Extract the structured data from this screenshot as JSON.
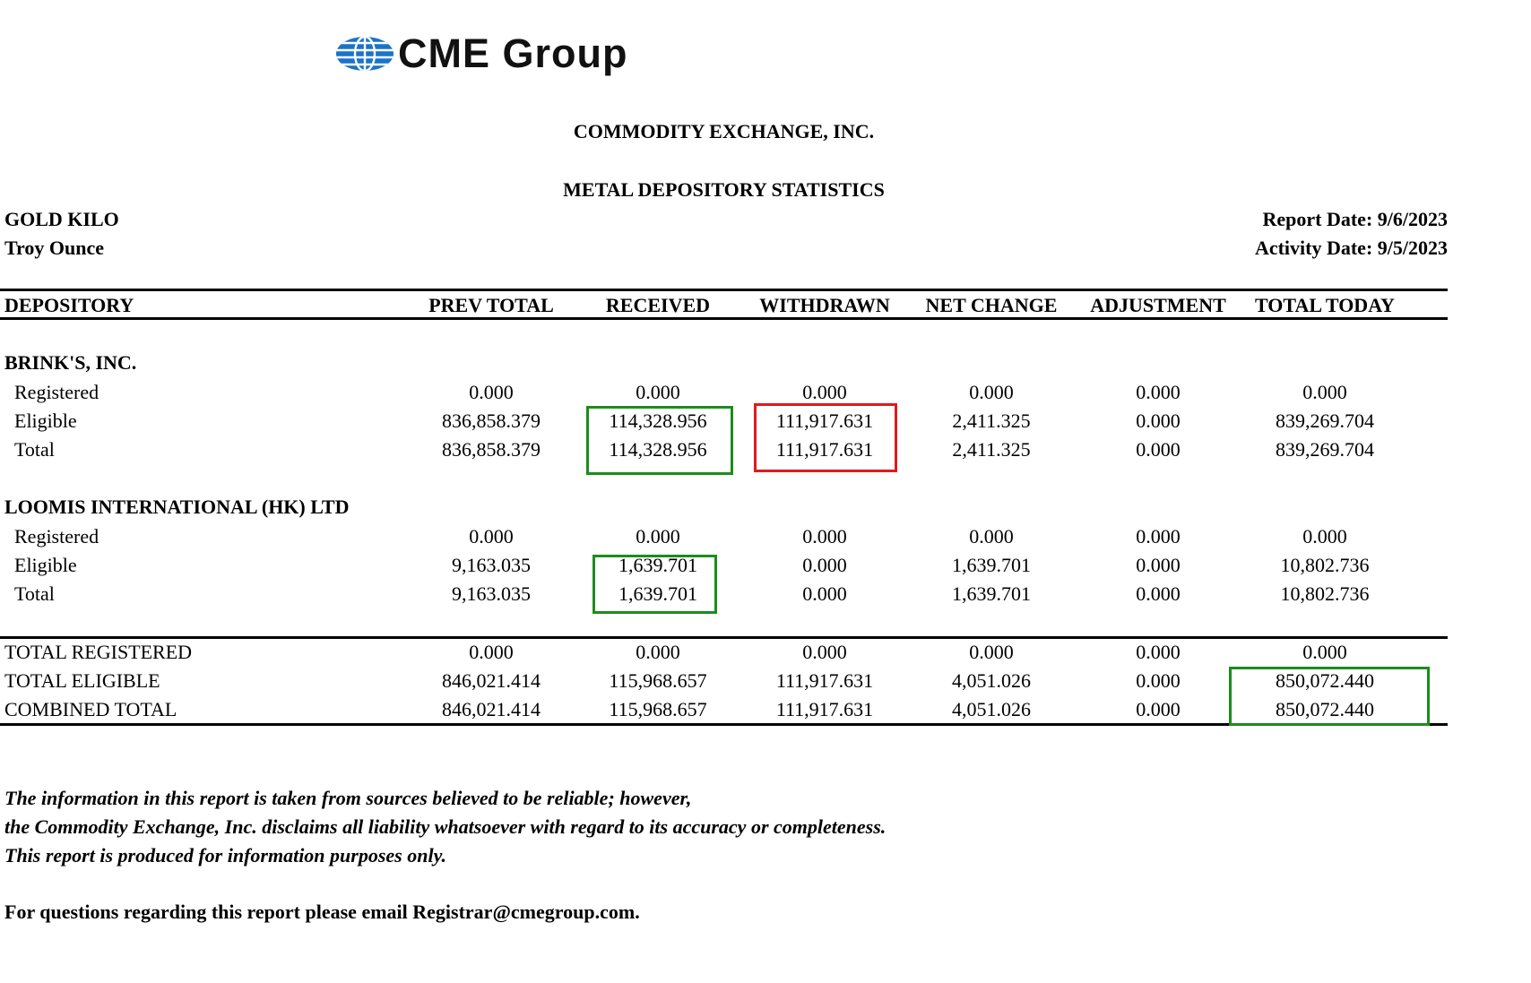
{
  "logo": {
    "text": "CME Group",
    "icon": "globe-icon",
    "color": "#1a73c8"
  },
  "header": {
    "company": "COMMODITY EXCHANGE, INC.",
    "report_title": "METAL DEPOSITORY STATISTICS",
    "metal": "GOLD KILO",
    "unit": "Troy Ounce",
    "report_date": "Report Date: 9/6/2023",
    "activity_date": "Activity Date: 9/5/2023"
  },
  "columns": [
    "DEPOSITORY",
    "PREV TOTAL",
    "RECEIVED",
    "WITHDRAWN",
    "NET CHANGE",
    "ADJUSTMENT",
    "TOTAL TODAY"
  ],
  "depositories": [
    {
      "name": "BRINK'S, INC.",
      "rows": [
        {
          "label": "Registered",
          "values": [
            "0.000",
            "0.000",
            "0.000",
            "0.000",
            "0.000",
            "0.000"
          ]
        },
        {
          "label": "Eligible",
          "values": [
            "836,858.379",
            "114,328.956",
            "111,917.631",
            "2,411.325",
            "0.000",
            "839,269.704"
          ]
        },
        {
          "label": "Total",
          "values": [
            "836,858.379",
            "114,328.956",
            "111,917.631",
            "2,411.325",
            "0.000",
            "839,269.704"
          ]
        }
      ]
    },
    {
      "name": "LOOMIS INTERNATIONAL (HK) LTD",
      "rows": [
        {
          "label": "Registered",
          "values": [
            "0.000",
            "0.000",
            "0.000",
            "0.000",
            "0.000",
            "0.000"
          ]
        },
        {
          "label": "Eligible",
          "values": [
            "9,163.035",
            "1,639.701",
            "0.000",
            "1,639.701",
            "0.000",
            "10,802.736"
          ]
        },
        {
          "label": "Total",
          "values": [
            "9,163.035",
            "1,639.701",
            "0.000",
            "1,639.701",
            "0.000",
            "10,802.736"
          ]
        }
      ]
    }
  ],
  "totals": [
    {
      "label": "TOTAL REGISTERED",
      "values": [
        "0.000",
        "0.000",
        "0.000",
        "0.000",
        "0.000",
        "0.000"
      ]
    },
    {
      "label": "TOTAL ELIGIBLE",
      "values": [
        "846,021.414",
        "115,968.657",
        "111,917.631",
        "4,051.026",
        "0.000",
        "850,072.440"
      ]
    },
    {
      "label": "COMBINED TOTAL",
      "values": [
        "846,021.414",
        "115,968.657",
        "111,917.631",
        "4,051.026",
        "0.000",
        "850,072.440"
      ]
    }
  ],
  "highlight_colors": {
    "green": "#1c8c1c",
    "red": "#e01b1b"
  },
  "disclaimer": [
    "The information in this report is taken from sources believed to be reliable; however,",
    "the Commodity Exchange, Inc. disclaims all liability whatsoever with regard to its accuracy or completeness.",
    "This report is produced for information purposes only."
  ],
  "contact": "For questions regarding this report please email Registrar@cmegroup.com."
}
